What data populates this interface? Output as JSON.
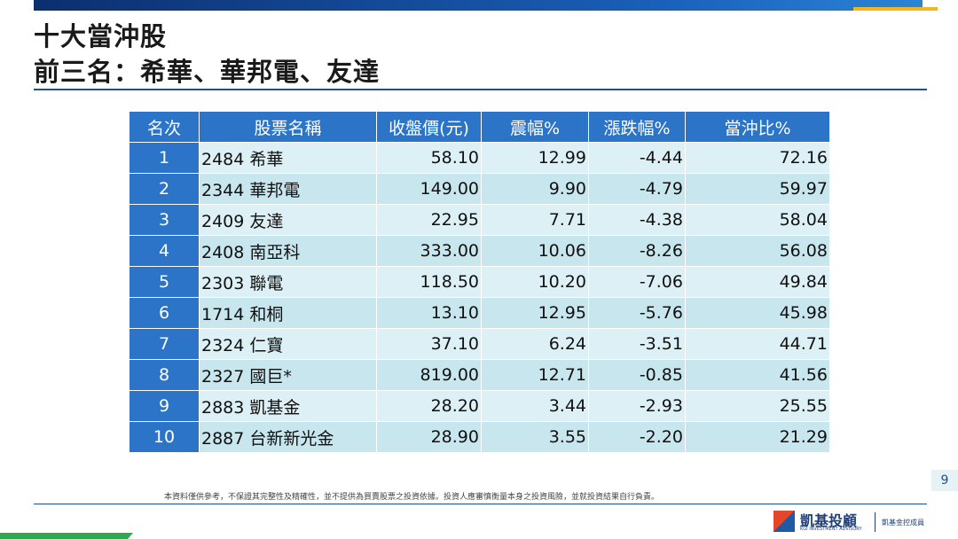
{
  "header": {
    "title": "十大當沖股",
    "subtitle": "前三名：希華、華邦電、友達"
  },
  "table": {
    "columns": [
      "名次",
      "股票名稱",
      "收盤價(元)",
      "震幅%",
      "漲跌幅%",
      "當沖比%"
    ],
    "rows": [
      [
        "1",
        "2484 希華",
        "58.10",
        "12.99",
        "-4.44",
        "72.16"
      ],
      [
        "2",
        "2344 華邦電",
        "149.00",
        "9.90",
        "-4.79",
        "59.97"
      ],
      [
        "3",
        "2409 友達",
        "22.95",
        "7.71",
        "-4.38",
        "58.04"
      ],
      [
        "4",
        "2408 南亞科",
        "333.00",
        "10.06",
        "-8.26",
        "56.08"
      ],
      [
        "5",
        "2303 聯電",
        "118.50",
        "10.20",
        "-7.06",
        "49.84"
      ],
      [
        "6",
        "1714 和桐",
        "13.10",
        "12.95",
        "-5.76",
        "45.98"
      ],
      [
        "7",
        "2324 仁寶",
        "37.10",
        "6.24",
        "-3.51",
        "44.71"
      ],
      [
        "8",
        "2327 國巨*",
        "819.00",
        "12.71",
        "-0.85",
        "41.56"
      ],
      [
        "9",
        "2883 凱基金",
        "28.20",
        "3.44",
        "-2.93",
        "25.55"
      ],
      [
        "10",
        "2887 台新新光金",
        "28.90",
        "3.55",
        "-2.20",
        "21.29"
      ]
    ]
  },
  "footer": {
    "disclaimer": "本資料僅供參考，不保證其完整性及精確性，並不提供為買賣股票之投資依據。投資人應審慎衡量本身之投資風險，並就投資結果自行負責。",
    "page_number": "9",
    "logo": {
      "name": "凱基投顧",
      "english": "KGI INVESTMENT ADVISORY",
      "member": "凱基金控成員"
    }
  }
}
